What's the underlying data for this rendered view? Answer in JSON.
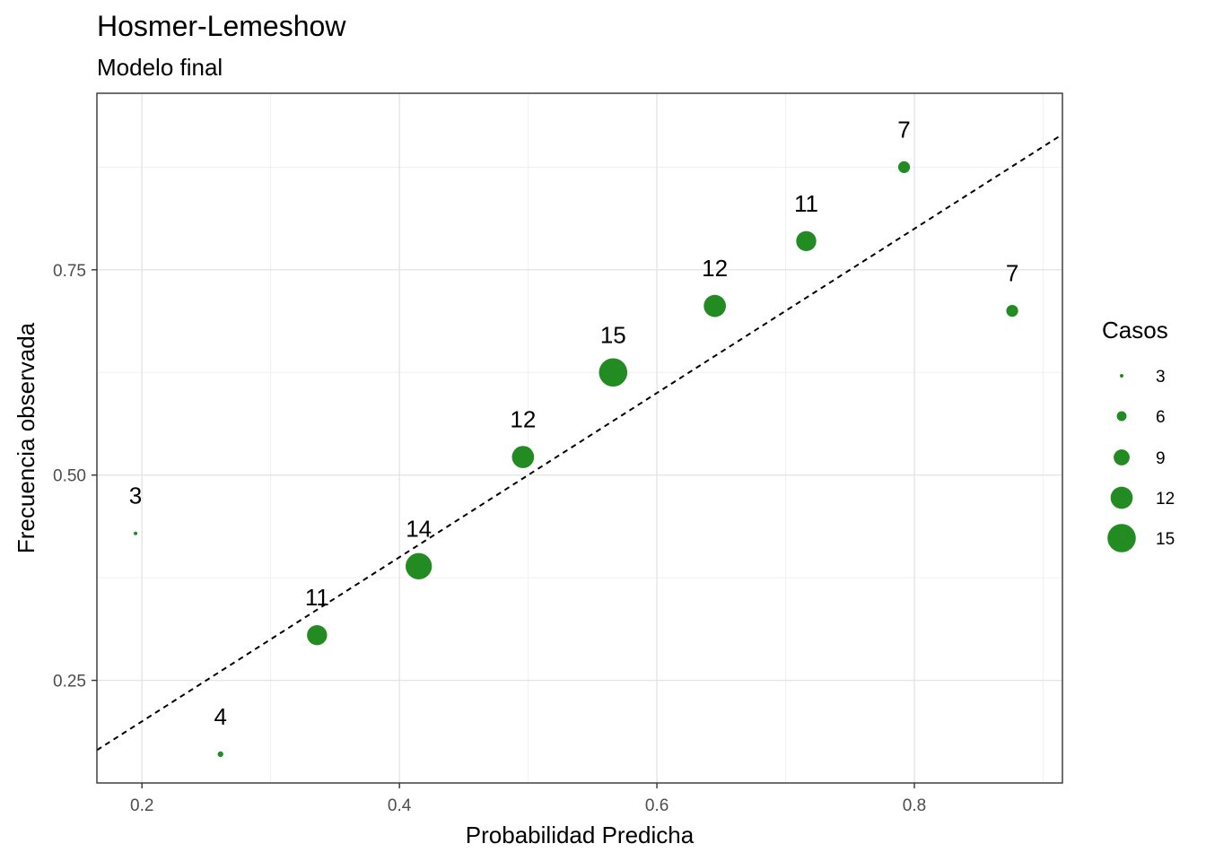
{
  "chart_data": {
    "type": "scatter",
    "title": "Hosmer-Lemeshow",
    "subtitle": "Modelo final",
    "xlabel": "Probabilidad Predicha",
    "ylabel": "Frecuencia observada",
    "xlim": [
      0.165,
      0.915
    ],
    "ylim": [
      0.125,
      0.965
    ],
    "x_ticks": [
      0.2,
      0.4,
      0.6,
      0.8
    ],
    "x_tick_labels": [
      "0.2",
      "0.4",
      "0.6",
      "0.8"
    ],
    "y_ticks": [
      0.25,
      0.5,
      0.75
    ],
    "y_tick_labels": [
      "0.25",
      "0.50",
      "0.75"
    ],
    "grid": true,
    "point_color": "#228B22",
    "reference_line": {
      "style": "dashed",
      "slope": 1,
      "intercept": 0,
      "color": "#000000"
    },
    "points": [
      {
        "x": 0.195,
        "y": 0.429,
        "casos": 3,
        "label": "3"
      },
      {
        "x": 0.261,
        "y": 0.16,
        "casos": 4,
        "label": "4"
      },
      {
        "x": 0.336,
        "y": 0.305,
        "casos": 11,
        "label": "11"
      },
      {
        "x": 0.415,
        "y": 0.389,
        "casos": 14,
        "label": "14"
      },
      {
        "x": 0.496,
        "y": 0.522,
        "casos": 12,
        "label": "12"
      },
      {
        "x": 0.566,
        "y": 0.625,
        "casos": 15,
        "label": "15"
      },
      {
        "x": 0.645,
        "y": 0.706,
        "casos": 12,
        "label": "12"
      },
      {
        "x": 0.716,
        "y": 0.785,
        "casos": 11,
        "label": "11"
      },
      {
        "x": 0.792,
        "y": 0.875,
        "casos": 7,
        "label": "7"
      },
      {
        "x": 0.876,
        "y": 0.7,
        "casos": 7,
        "label": "7"
      }
    ],
    "legend": {
      "title": "Casos",
      "placement": "right",
      "entries": [
        {
          "value": 3,
          "label": "3"
        },
        {
          "value": 6,
          "label": "6"
        },
        {
          "value": 9,
          "label": "9"
        },
        {
          "value": 12,
          "label": "12"
        },
        {
          "value": 15,
          "label": "15"
        }
      ]
    }
  }
}
